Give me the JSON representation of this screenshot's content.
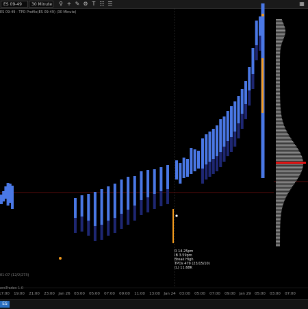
{
  "toolbar": {
    "instrument_label": "ES 09-49",
    "interval_label": "30 Minute",
    "buttons": [
      "search-icon",
      "crosshair-icon",
      "pencil-icon",
      "zoom-icon",
      "text-icon",
      "gear-icon",
      "menu-icon",
      "layout-icon"
    ]
  },
  "chart": {
    "title": "ES 09-49 - TPO Profile(ES 09-49) (30 Minute)",
    "x_labels": [
      "17:00",
      "19:00",
      "21:00",
      "23:00",
      "Jan 26",
      "03:00",
      "05:00",
      "07:00",
      "09:00",
      "11:00",
      "13:00",
      "Jan 24",
      "03:00",
      "05:00",
      "07:00",
      "09:00",
      "Jan 29",
      "05:00",
      "03:00",
      "07:00"
    ],
    "readout": [
      "R 14.25pm",
      "IB 3.59pm",
      "Break High",
      "TPOs 479 (23/15/10)",
      "(L) 11.68K"
    ],
    "footer": "01:07 (12/2/273)",
    "footer2": "eraTrades 1.0"
  },
  "colors": {
    "bar_light": "#4a78e6",
    "bar_dark": "#1e2773",
    "orange": "#f39a1d",
    "profile": "#8a8a8a",
    "poc": "#e01515",
    "level_line": "#7a1010"
  },
  "chart_data": {
    "type": "bar",
    "series": [
      {
        "values": [
          [
            284,
            298
          ],
          [
            279,
            294
          ],
          [
            272,
            290
          ],
          [
            267,
            300
          ],
          [
            268,
            296
          ],
          [
            271,
            305
          ]
        ]
      },
      {
        "values": [
          [
            289,
            318
          ],
          [
            285,
            316
          ],
          [
            283,
            322
          ],
          [
            280,
            330
          ],
          [
            276,
            328
          ],
          [
            272,
            322
          ],
          [
            268,
            318
          ],
          [
            262,
            312
          ],
          [
            258,
            306
          ],
          [
            257,
            300
          ],
          [
            250,
            292
          ],
          [
            248,
            288
          ],
          [
            247,
            283
          ],
          [
            244,
            279
          ],
          [
            241,
            276
          ]
        ]
      },
      {
        "values": [
          [
            234,
            262
          ],
          [
            238,
            268
          ],
          [
            230,
            260
          ],
          [
            232,
            258
          ],
          [
            216,
            254
          ],
          [
            218,
            250
          ],
          [
            220,
            246
          ]
        ]
      },
      {
        "values": [
          [
            202,
            246
          ],
          [
            196,
            240
          ],
          [
            192,
            236
          ],
          [
            188,
            232
          ],
          [
            183,
            228
          ],
          [
            174,
            222
          ],
          [
            170,
            214
          ],
          [
            162,
            206
          ],
          [
            155,
            200
          ],
          [
            148,
            192
          ],
          [
            140,
            180
          ],
          [
            130,
            166
          ],
          [
            118,
            152
          ],
          [
            98,
            132
          ],
          [
            70,
            108
          ],
          [
            30,
            66
          ],
          [
            24,
            52
          ]
        ]
      },
      {
        "values": [
          [
            5,
            260
          ]
        ]
      }
    ]
  },
  "bottom": {
    "tab_label": "ES"
  }
}
